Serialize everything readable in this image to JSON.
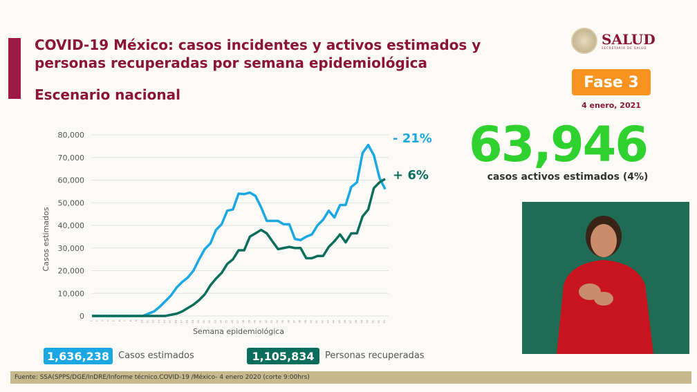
{
  "header": {
    "title": "COVID-19 México: casos incidentes y activos estimados y personas recuperadas por semana epidemiológica",
    "subtitle": "Escenario nacional"
  },
  "logo": {
    "name": "SALUD",
    "sub": "SECRETARÍA DE SALUD"
  },
  "phase": "Fase 3",
  "date": "4 enero, 2021",
  "active": {
    "value": "63,946",
    "label": "casos activos estimados (4%)"
  },
  "legend": [
    {
      "value": "1,636,238",
      "label": "Casos estimados",
      "color": "#1aa7e2"
    },
    {
      "value": "1,105,834",
      "label": "Personas recuperadas",
      "color": "#0b6e5c"
    }
  ],
  "footer": "Fuente: SSA(SPPS/DGE/InDRE/Informe técnico.COVID-19 /México- 4 enero 2020 (corte 9:00hrs)",
  "chart_data": {
    "type": "line",
    "xlabel": "Semana epidemiológica",
    "ylabel": "Casos estimados",
    "ylim": [
      0,
      80000
    ],
    "yticks": [
      "0",
      "10,000",
      "20,000",
      "30,000",
      "40,000",
      "50,000",
      "60,000",
      "70,000",
      "80,000"
    ],
    "grid": true,
    "x": [
      1,
      2,
      3,
      4,
      5,
      6,
      7,
      8,
      9,
      10,
      11,
      12,
      13,
      14,
      15,
      16,
      17,
      18,
      19,
      20,
      21,
      22,
      23,
      24,
      25,
      26,
      27,
      28,
      29,
      30,
      31,
      32,
      33,
      34,
      35,
      36,
      37,
      38,
      39,
      40,
      41,
      42,
      43,
      44,
      45,
      46,
      47,
      48,
      49,
      50,
      51,
      52,
      53
    ],
    "series": [
      {
        "color": "#1aa7e2",
        "annotation": "- 21%",
        "values": [
          0,
          0,
          0,
          0,
          0,
          0,
          0,
          0,
          0,
          0,
          1000,
          2000,
          4000,
          6500,
          9000,
          12500,
          15000,
          17000,
          20000,
          25000,
          29500,
          32000,
          38000,
          40500,
          46500,
          47000,
          54000,
          53800,
          54500,
          53000,
          48000,
          42000,
          42000,
          42000,
          40500,
          40500,
          34000,
          33500,
          35000,
          36000,
          40000,
          42500,
          46500,
          43500,
          49000,
          49000,
          57000,
          59000,
          72000,
          75500,
          71000,
          61000,
          56000
        ]
      },
      {
        "color": "#0b6e5c",
        "annotation": "+ 6%",
        "values": [
          0,
          0,
          0,
          0,
          0,
          0,
          0,
          0,
          0,
          0,
          0,
          0,
          0,
          0,
          500,
          1000,
          2000,
          3500,
          5000,
          7000,
          9500,
          13500,
          16500,
          19000,
          23000,
          25000,
          29000,
          29000,
          35000,
          36500,
          38000,
          36500,
          33000,
          29500,
          30000,
          30500,
          30000,
          30000,
          25500,
          25500,
          26500,
          26500,
          30500,
          33000,
          36000,
          32500,
          36500,
          36500,
          44000,
          47000,
          56500,
          59000,
          60500
        ]
      }
    ]
  }
}
